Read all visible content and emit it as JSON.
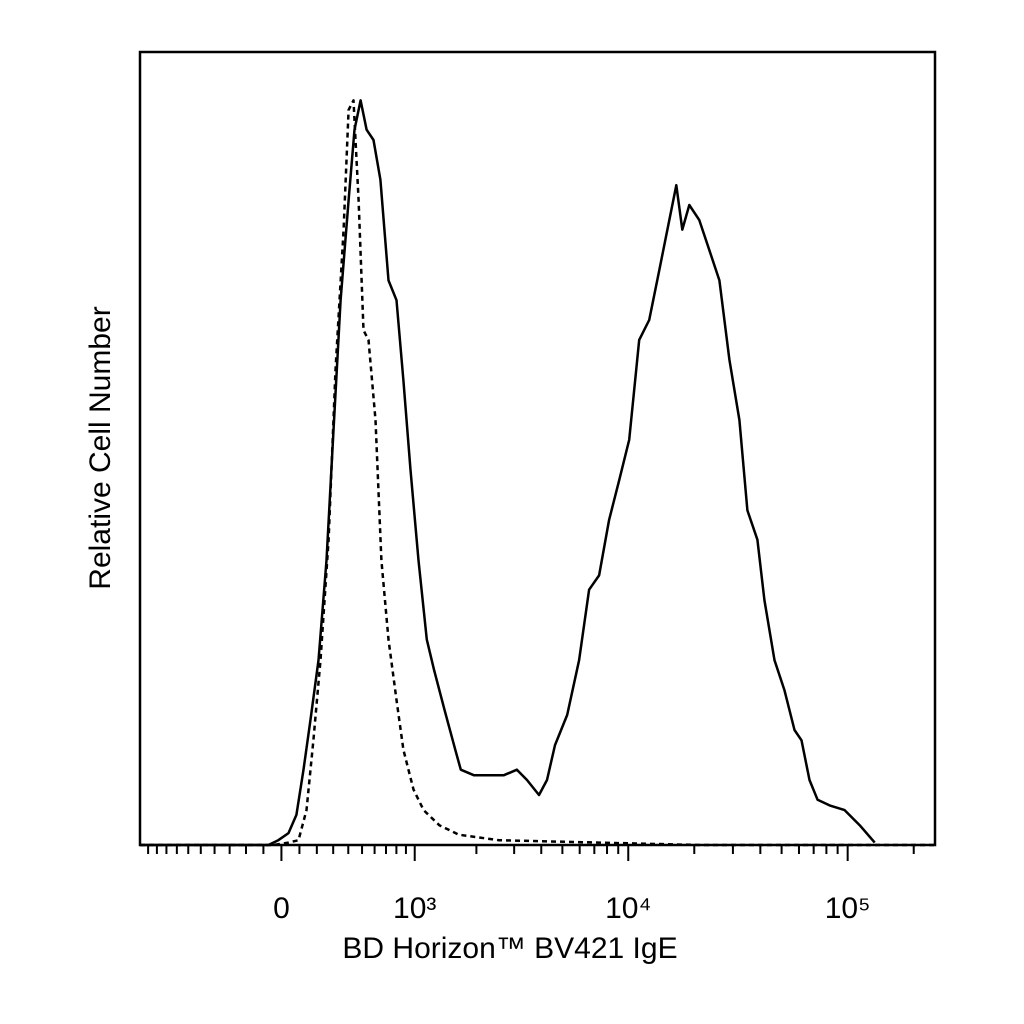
{
  "chart_data": {
    "type": "histogram_overlay",
    "x_label": "BD Horizon™ BV421 IgE",
    "y_label": "Relative Cell Number",
    "x_scale": "biexponential",
    "xlim": [
      -1100,
      250000
    ],
    "ylim": [
      0,
      100
    ],
    "xticks": [
      {
        "value": 0,
        "label": "0"
      },
      {
        "value": 1000,
        "label": "10³"
      },
      {
        "value": 10000,
        "label": "10⁴"
      },
      {
        "value": 100000,
        "label": "10⁵"
      }
    ],
    "xminor_ticks": [
      -1000,
      -900,
      -800,
      -700,
      -600,
      -500,
      -400,
      -300,
      -200,
      -100,
      100,
      200,
      300,
      400,
      500,
      600,
      700,
      800,
      900,
      2000,
      3000,
      4000,
      5000,
      6000,
      7000,
      8000,
      9000,
      20000,
      30000,
      40000,
      50000,
      60000,
      70000,
      80000,
      90000,
      200000
    ],
    "series": [
      {
        "color": "#000000",
        "dash": false,
        "x": [
          -1100,
          -72,
          -17,
          39,
          83,
          123,
          163,
          210,
          258,
          302,
          348,
          402,
          444,
          489,
          535,
          591,
          650,
          723,
          801,
          873,
          951,
          1046,
          1151,
          1251,
          1409,
          1588,
          1687,
          1945,
          2288,
          2689,
          3090,
          3437,
          3904,
          4250,
          4624,
          5260,
          5960,
          6628,
          7359,
          8179,
          9089,
          10099,
          11214,
          12461,
          13850,
          15380,
          16558,
          17637,
          18983,
          21087,
          23428,
          26021,
          28904,
          32112,
          34926,
          38793,
          41764,
          46393,
          51548,
          57255,
          61621,
          67039,
          72930,
          82740,
          96863,
          113406,
          132736
        ],
        "values": [
          0,
          0,
          0.6,
          1.5,
          3.8,
          9.5,
          15.8,
          23.3,
          35.9,
          52.3,
          68.7,
          81.3,
          90.2,
          93.9,
          90.2,
          88.9,
          83.9,
          71.2,
          68.7,
          58.6,
          47.3,
          35.9,
          25.9,
          22.1,
          17.0,
          12.0,
          9.5,
          8.8,
          8.8,
          8.8,
          9.5,
          8.2,
          6.3,
          8.2,
          12.6,
          16.4,
          23.3,
          32.2,
          34.0,
          41.0,
          46.0,
          51.1,
          63.7,
          66.2,
          72.5,
          78.8,
          83.2,
          77.6,
          80.7,
          78.8,
          75.0,
          71.2,
          61.2,
          53.6,
          42.2,
          38.5,
          30.9,
          23.3,
          19.5,
          14.5,
          13.2,
          8.2,
          5.7,
          5.0,
          4.4,
          2.5,
          0.3
        ]
      },
      {
        "color": "#000000",
        "dash": true,
        "x": [
          -1100,
          -44,
          39,
          95,
          140,
          180,
          222,
          271,
          315,
          368,
          402,
          437,
          474,
          511,
          550,
          608,
          659,
          723,
          801,
          873,
          986,
          1110,
          1328,
          1650,
          2548,
          7359,
          21087,
          250000
        ],
        "values": [
          0,
          0,
          0.3,
          0.6,
          4.4,
          13.2,
          23.3,
          38.5,
          59.9,
          77.6,
          92.7,
          93.9,
          81.3,
          64.9,
          63.7,
          53.6,
          35.9,
          25.9,
          18.3,
          12.0,
          7.0,
          4.4,
          2.5,
          1.3,
          0.6,
          0.3,
          0,
          0
        ]
      }
    ]
  }
}
